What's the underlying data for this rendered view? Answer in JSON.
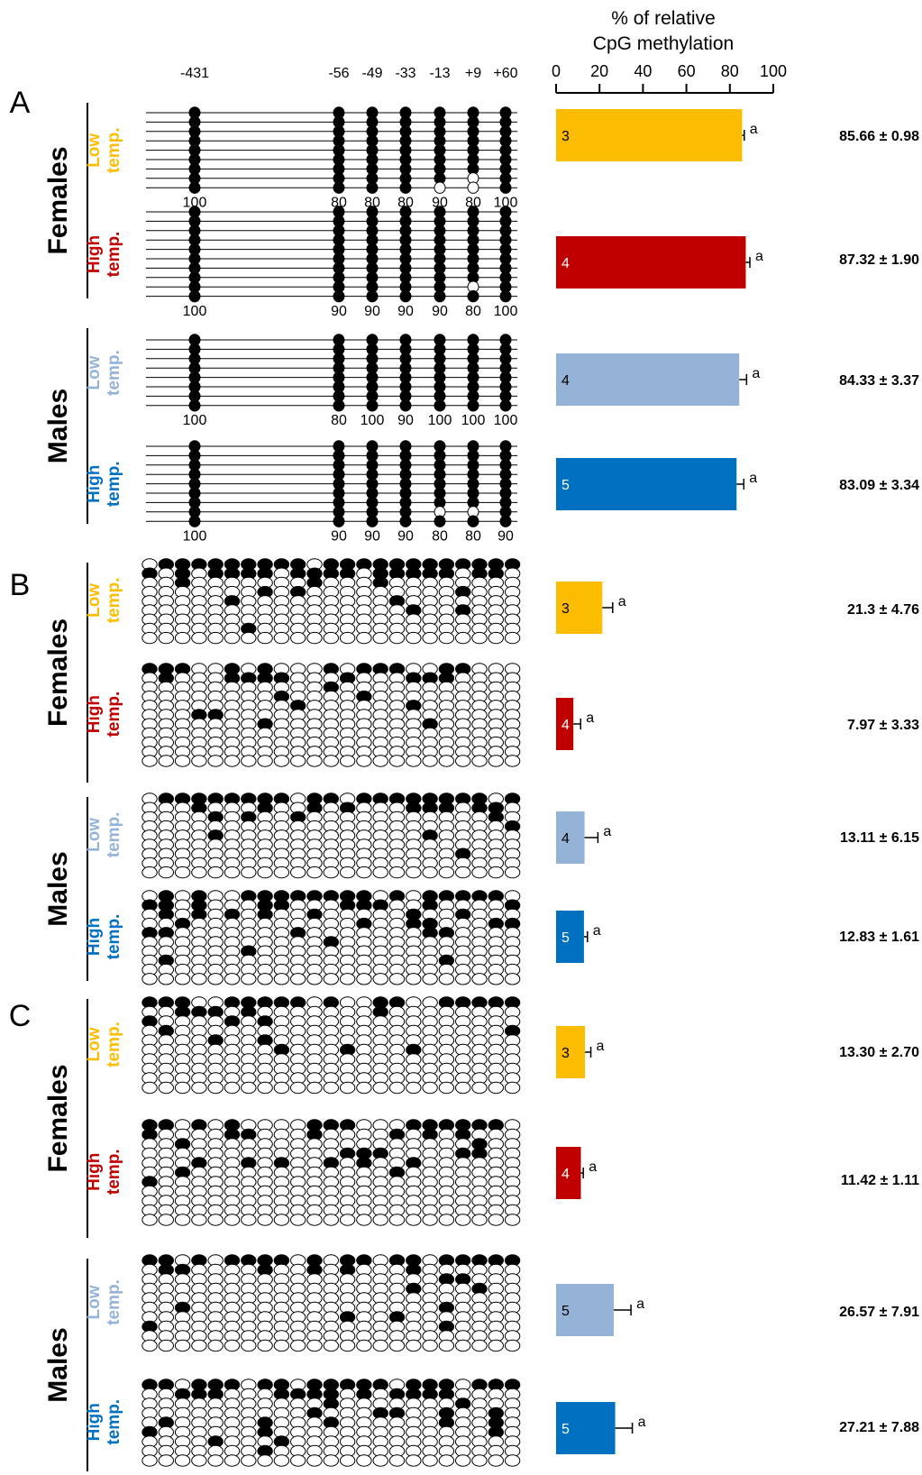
{
  "chart_data": {
    "type": "bar",
    "title": "% of relative CpG methylation",
    "title_lines": [
      "% of relative",
      "CpG methylation"
    ],
    "xlim": [
      0,
      100
    ],
    "x_ticks": [
      "0",
      "20",
      "40",
      "60",
      "80",
      "100"
    ],
    "panels": [
      {
        "label": "A",
        "sites": [
          "-431",
          "-56",
          "-49",
          "-33",
          "-13",
          "+9",
          "+60"
        ],
        "groups": [
          {
            "sex": "Females",
            "temp": [
              "Low",
              "temp."
            ],
            "color": "#fcbd00",
            "n": "3",
            "value": 85.66,
            "error": 0.98,
            "letter": "a",
            "value_text": "85.66 ± 0.98",
            "site_pct": [
              "100",
              "80",
              "80",
              "80",
              "90",
              "80",
              "100"
            ]
          },
          {
            "sex": "Females",
            "temp": [
              "High",
              "temp."
            ],
            "color": "#c00000",
            "n": "4",
            "value": 87.32,
            "error": 1.9,
            "letter": "a",
            "value_text": "87.32 ± 1.90",
            "site_pct": [
              "100",
              "90",
              "90",
              "90",
              "90",
              "80",
              "100"
            ]
          },
          {
            "sex": "Males",
            "temp": [
              "Low",
              "temp."
            ],
            "color": "#95b3d7",
            "n": "4",
            "value": 84.33,
            "error": 3.37,
            "letter": "a",
            "value_text": "84.33 ± 3.37",
            "site_pct": [
              "100",
              "80",
              "100",
              "90",
              "100",
              "100",
              "100"
            ]
          },
          {
            "sex": "Males",
            "temp": [
              "High",
              "temp."
            ],
            "color": "#0070c0",
            "n": "5",
            "value": 83.09,
            "error": 3.34,
            "letter": "a",
            "value_text": "83.09 ± 3.34",
            "site_pct": [
              "100",
              "90",
              "90",
              "90",
              "80",
              "80",
              "90"
            ]
          }
        ]
      },
      {
        "label": "B",
        "groups": [
          {
            "sex": "Females",
            "temp": [
              "Low",
              "temp."
            ],
            "color": "#fcbd00",
            "n": "3",
            "value": 21.3,
            "error": 4.76,
            "letter": "a",
            "value_text": "21.3 ± 4.76"
          },
          {
            "sex": "Females",
            "temp": [
              "High",
              "temp."
            ],
            "color": "#c00000",
            "n": "4",
            "value": 7.97,
            "error": 3.33,
            "letter": "a",
            "value_text": "7.97 ± 3.33"
          },
          {
            "sex": "Males",
            "temp": [
              "Low",
              "temp."
            ],
            "color": "#95b3d7",
            "n": "4",
            "value": 13.11,
            "error": 6.15,
            "letter": "a",
            "value_text": "13.11 ± 6.15"
          },
          {
            "sex": "Males",
            "temp": [
              "High",
              "temp."
            ],
            "color": "#0070c0",
            "n": "5",
            "value": 12.83,
            "error": 1.61,
            "letter": "a",
            "value_text": "12.83 ± 1.61"
          }
        ]
      },
      {
        "label": "C",
        "groups": [
          {
            "sex": "Females",
            "temp": [
              "Low",
              "temp."
            ],
            "color": "#fcbd00",
            "n": "3",
            "value": 13.3,
            "error": 2.7,
            "letter": "a",
            "value_text": "13.30 ± 2.70"
          },
          {
            "sex": "Females",
            "temp": [
              "High",
              "temp."
            ],
            "color": "#c00000",
            "n": "4",
            "value": 11.42,
            "error": 1.11,
            "letter": "a",
            "value_text": "11.42 ± 1.11"
          },
          {
            "sex": "Males",
            "temp": [
              "Low",
              "temp."
            ],
            "color": "#95b3d7",
            "n": "5",
            "value": 26.57,
            "error": 7.91,
            "letter": "a",
            "value_text": "26.57 ± 7.91"
          },
          {
            "sex": "Males",
            "temp": [
              "High",
              "temp."
            ],
            "color": "#0070c0",
            "n": "5",
            "value": 27.21,
            "error": 7.88,
            "letter": "a",
            "value_text": "27.21 ± 7.88"
          }
        ]
      }
    ]
  }
}
